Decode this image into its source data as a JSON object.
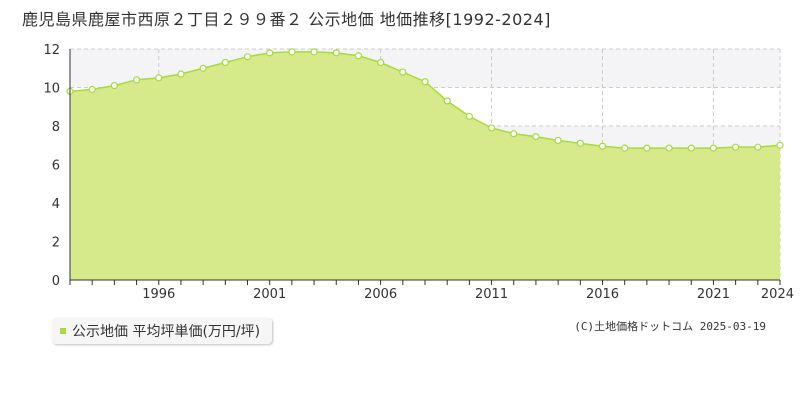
{
  "title": "鹿児島県鹿屋市西原２丁目２９９番２ 公示地価 地価推移[1992-2024]",
  "legend": {
    "label": "公示地価 平均坪単価(万円/坪)"
  },
  "credit": "(C)土地価格ドットコム 2025-03-19",
  "colors": {
    "fill": "#d6ea8c",
    "line": "#a8d93d",
    "point_fill": "#ffffff",
    "grid": "#cccccc",
    "axis": "#333333",
    "band": "#f4f4f6"
  },
  "chart_data": {
    "type": "area",
    "title": "",
    "xlabel": "",
    "ylabel": "",
    "x": [
      1992,
      1993,
      1994,
      1995,
      1996,
      1997,
      1998,
      1999,
      2000,
      2001,
      2002,
      2003,
      2004,
      2005,
      2006,
      2007,
      2008,
      2009,
      2010,
      2011,
      2012,
      2013,
      2014,
      2015,
      2016,
      2017,
      2018,
      2019,
      2020,
      2021,
      2022,
      2023,
      2024
    ],
    "values": [
      9.8,
      9.9,
      10.1,
      10.4,
      10.5,
      10.7,
      11.0,
      11.3,
      11.6,
      11.8,
      11.85,
      11.85,
      11.8,
      11.65,
      11.3,
      10.8,
      10.3,
      9.3,
      8.5,
      7.9,
      7.6,
      7.45,
      7.25,
      7.1,
      6.95,
      6.85,
      6.85,
      6.85,
      6.85,
      6.85,
      6.9,
      6.9,
      7.0
    ],
    "xlim": [
      1992,
      2024
    ],
    "ylim": [
      0,
      12
    ],
    "y_ticks": [
      0,
      2,
      4,
      6,
      8,
      10,
      12
    ],
    "x_tick_labels": [
      1996,
      2001,
      2006,
      2011,
      2016,
      2021,
      2024
    ],
    "grid": true
  }
}
